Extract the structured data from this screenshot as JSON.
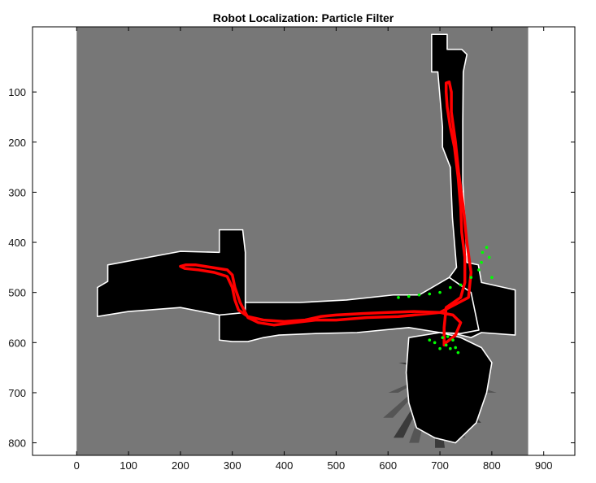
{
  "chart_data": {
    "type": "image-map",
    "title": "Robot Localization: Particle Filter",
    "xlabel": "",
    "ylabel": "",
    "xlim": [
      -85,
      960
    ],
    "ylim": [
      825,
      -30
    ],
    "y_reversed": true,
    "xticks": [
      0,
      100,
      200,
      300,
      400,
      500,
      600,
      700,
      800,
      900
    ],
    "yticks": [
      100,
      200,
      300,
      400,
      500,
      600,
      700,
      800
    ],
    "map_extent": {
      "x": [
        0,
        870
      ],
      "y": [
        -30,
        825
      ]
    },
    "colors": {
      "unknown": "#777777",
      "free": "#000000",
      "wall": "#ffffff",
      "trajectory": "#ff0000",
      "particles": "#00ff00"
    },
    "free_regions": [
      {
        "name": "vertical-corridor",
        "points": [
          [
            684,
            -15
          ],
          [
            714,
            -15
          ],
          [
            714,
            15
          ],
          [
            742,
            15
          ],
          [
            752,
            25
          ],
          [
            745,
            60
          ],
          [
            744,
            160
          ],
          [
            744,
            280
          ],
          [
            748,
            350
          ],
          [
            752,
            440
          ],
          [
            774,
            445
          ],
          [
            780,
            480
          ],
          [
            845,
            495
          ],
          [
            845,
            585
          ],
          [
            780,
            580
          ],
          [
            760,
            590
          ],
          [
            720,
            580
          ],
          [
            718,
            470
          ],
          [
            732,
            450
          ],
          [
            724,
            350
          ],
          [
            720,
            250
          ],
          [
            705,
            210
          ],
          [
            705,
            170
          ],
          [
            696,
            60
          ],
          [
            684,
            60
          ]
        ]
      },
      {
        "name": "horizontal-corridor",
        "points": [
          [
            300,
            520
          ],
          [
            430,
            520
          ],
          [
            520,
            515
          ],
          [
            610,
            505
          ],
          [
            660,
            505
          ],
          [
            718,
            470
          ],
          [
            760,
            500
          ],
          [
            775,
            575
          ],
          [
            740,
            582
          ],
          [
            700,
            580
          ],
          [
            640,
            570
          ],
          [
            540,
            580
          ],
          [
            460,
            582
          ],
          [
            390,
            585
          ],
          [
            360,
            590
          ],
          [
            330,
            598
          ],
          [
            300,
            598
          ],
          [
            275,
            595
          ],
          [
            275,
            540
          ],
          [
            300,
            540
          ]
        ]
      },
      {
        "name": "left-room",
        "points": [
          [
            60,
            445
          ],
          [
            200,
            418
          ],
          [
            275,
            420
          ],
          [
            275,
            375
          ],
          [
            320,
            375
          ],
          [
            325,
            420
          ],
          [
            325,
            540
          ],
          [
            275,
            545
          ],
          [
            200,
            530
          ],
          [
            100,
            538
          ],
          [
            40,
            548
          ],
          [
            40,
            490
          ],
          [
            60,
            478
          ]
        ]
      },
      {
        "name": "bottom-hub",
        "points": [
          [
            640,
            590
          ],
          [
            700,
            580
          ],
          [
            740,
            590
          ],
          [
            780,
            610
          ],
          [
            800,
            640
          ],
          [
            790,
            700
          ],
          [
            770,
            760
          ],
          [
            730,
            800
          ],
          [
            690,
            790
          ],
          [
            655,
            770
          ],
          [
            640,
            720
          ],
          [
            635,
            660
          ]
        ]
      }
    ],
    "rays": [
      [
        [
          690,
          660
        ],
        [
          600,
          750
        ]
      ],
      [
        [
          690,
          660
        ],
        [
          620,
          790
        ]
      ],
      [
        [
          690,
          660
        ],
        [
          650,
          800
        ]
      ],
      [
        [
          690,
          660
        ],
        [
          700,
          810
        ]
      ],
      [
        [
          690,
          660
        ],
        [
          740,
          790
        ]
      ],
      [
        [
          690,
          660
        ],
        [
          770,
          760
        ]
      ],
      [
        [
          690,
          660
        ],
        [
          800,
          700
        ]
      ],
      [
        [
          690,
          660
        ],
        [
          780,
          640
        ]
      ],
      [
        [
          690,
          660
        ],
        [
          610,
          700
        ]
      ],
      [
        [
          690,
          660
        ],
        [
          630,
          640
        ]
      ]
    ],
    "series": [
      {
        "type": "line",
        "points": [
          [
            708,
            605
          ],
          [
            708,
            570
          ],
          [
            712,
            530
          ],
          [
            740,
            510
          ],
          [
            748,
            480
          ],
          [
            748,
            430
          ],
          [
            742,
            380
          ],
          [
            740,
            330
          ],
          [
            735,
            270
          ],
          [
            728,
            210
          ],
          [
            720,
            170
          ],
          [
            714,
            130
          ],
          [
            712,
            100
          ],
          [
            712,
            82
          ],
          [
            718,
            80
          ],
          [
            722,
            100
          ],
          [
            722,
            140
          ],
          [
            730,
            200
          ],
          [
            736,
            260
          ],
          [
            745,
            330
          ],
          [
            752,
            400
          ],
          [
            760,
            460
          ],
          [
            755,
            510
          ],
          [
            700,
            540
          ],
          [
            620,
            548
          ],
          [
            560,
            550
          ],
          [
            500,
            555
          ],
          [
            460,
            555
          ],
          [
            420,
            560
          ],
          [
            380,
            565
          ],
          [
            350,
            560
          ],
          [
            330,
            550
          ],
          [
            315,
            520
          ],
          [
            305,
            490
          ],
          [
            300,
            465
          ],
          [
            290,
            455
          ],
          [
            260,
            450
          ],
          [
            230,
            445
          ],
          [
            210,
            445
          ],
          [
            200,
            448
          ],
          [
            208,
            452
          ],
          [
            235,
            455
          ],
          [
            265,
            460
          ],
          [
            290,
            468
          ],
          [
            300,
            490
          ],
          [
            305,
            515
          ],
          [
            312,
            535
          ],
          [
            330,
            548
          ],
          [
            360,
            555
          ],
          [
            400,
            558
          ],
          [
            440,
            555
          ],
          [
            470,
            548
          ],
          [
            500,
            545
          ],
          [
            550,
            542
          ],
          [
            600,
            540
          ],
          [
            650,
            538
          ],
          [
            700,
            540
          ],
          [
            725,
            545
          ],
          [
            740,
            560
          ],
          [
            730,
            585
          ],
          [
            712,
            600
          ],
          [
            708,
            605
          ]
        ]
      },
      {
        "type": "scatter",
        "points": [
          [
            620,
            510
          ],
          [
            640,
            508
          ],
          [
            660,
            505
          ],
          [
            680,
            503
          ],
          [
            700,
            500
          ],
          [
            720,
            490
          ],
          [
            740,
            485
          ],
          [
            760,
            470
          ],
          [
            775,
            455
          ],
          [
            780,
            440
          ],
          [
            782,
            420
          ],
          [
            790,
            410
          ],
          [
            795,
            430
          ],
          [
            800,
            470
          ],
          [
            705,
            590
          ],
          [
            715,
            588
          ],
          [
            725,
            595
          ],
          [
            712,
            605
          ],
          [
            700,
            612
          ],
          [
            690,
            600
          ],
          [
            680,
            595
          ],
          [
            720,
            612
          ],
          [
            730,
            610
          ],
          [
            735,
            620
          ]
        ]
      }
    ]
  }
}
